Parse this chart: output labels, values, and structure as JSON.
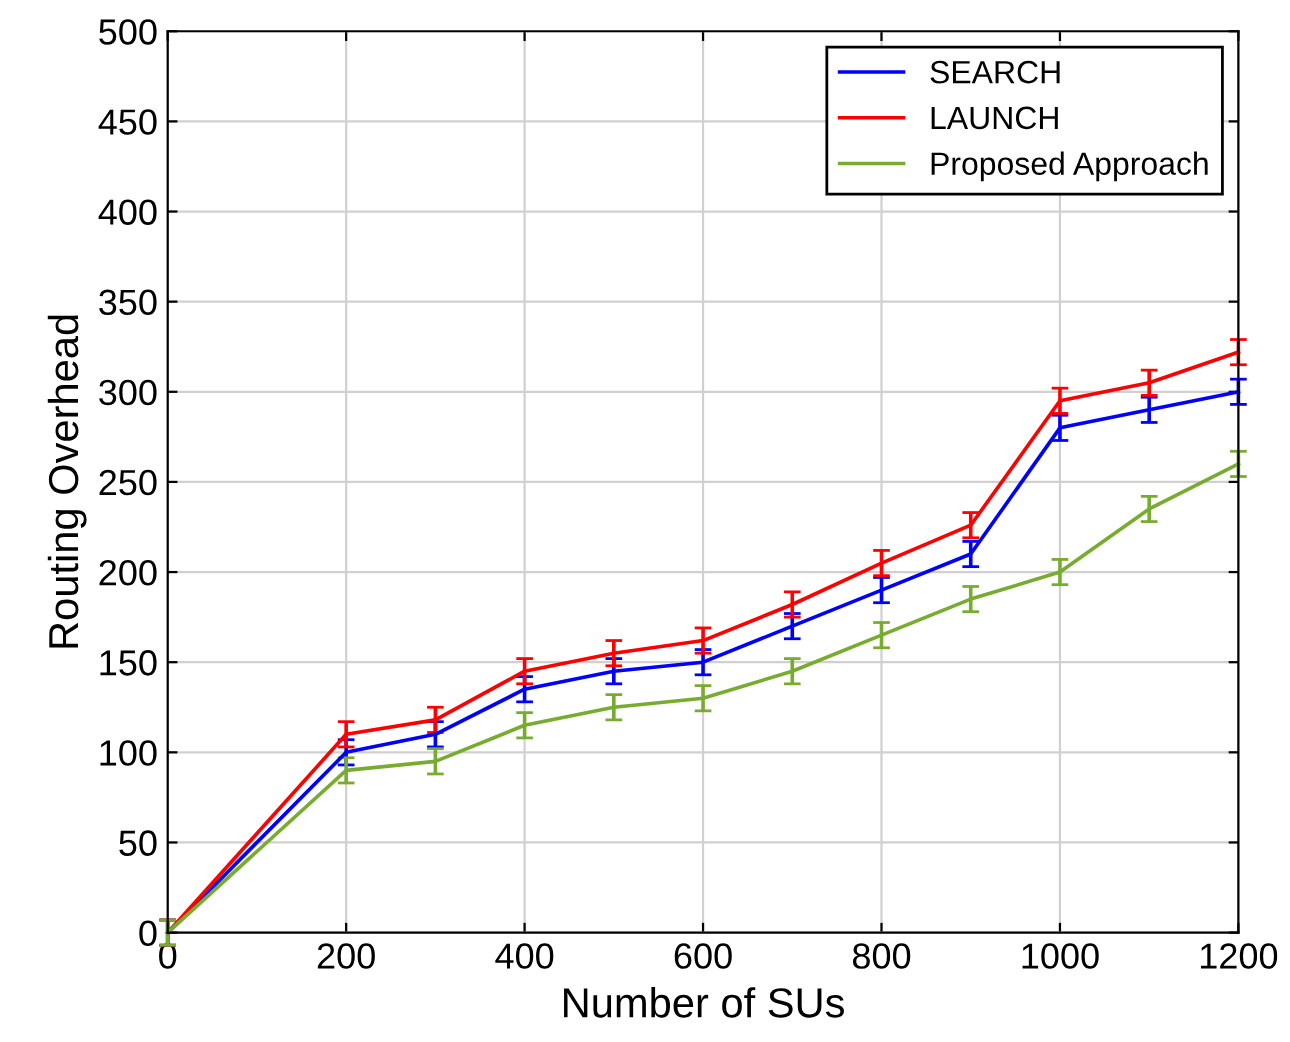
{
  "chart_data": {
    "type": "line",
    "xlabel": "Number of SUs",
    "ylabel": "Routing Overhead",
    "x": [
      0,
      200,
      300,
      400,
      500,
      600,
      700,
      800,
      900,
      1000,
      1100,
      1200
    ],
    "series": [
      {
        "name": "SEARCH",
        "color": "#0000ff",
        "values": [
          0,
          100,
          110,
          135,
          145,
          150,
          170,
          190,
          210,
          280,
          290,
          300
        ],
        "errors": [
          7,
          7,
          7,
          7,
          7,
          7,
          7,
          7,
          7,
          7,
          7,
          7
        ]
      },
      {
        "name": "LAUNCH",
        "color": "#ff0000",
        "values": [
          0,
          110,
          118,
          145,
          155,
          162,
          182,
          205,
          226,
          295,
          305,
          322
        ],
        "errors": [
          7,
          7,
          7,
          7,
          7,
          7,
          7,
          7,
          7,
          7,
          7,
          7
        ]
      },
      {
        "name": "Proposed Approach",
        "color": "#77ac30",
        "values": [
          0,
          90,
          95,
          115,
          125,
          130,
          145,
          165,
          185,
          200,
          235,
          260
        ],
        "errors": [
          7,
          7,
          7,
          7,
          7,
          7,
          7,
          7,
          7,
          7,
          7,
          7
        ]
      }
    ],
    "xlim": [
      0,
      1200
    ],
    "xticks": [
      0,
      200,
      400,
      600,
      800,
      1000,
      1200
    ],
    "ylim": [
      0,
      500
    ],
    "yticks": [
      0,
      50,
      100,
      150,
      200,
      250,
      300,
      350,
      400,
      450,
      500
    ],
    "grid": true,
    "legend": "top right",
    "marker": "none",
    "line_style": "solid"
  }
}
